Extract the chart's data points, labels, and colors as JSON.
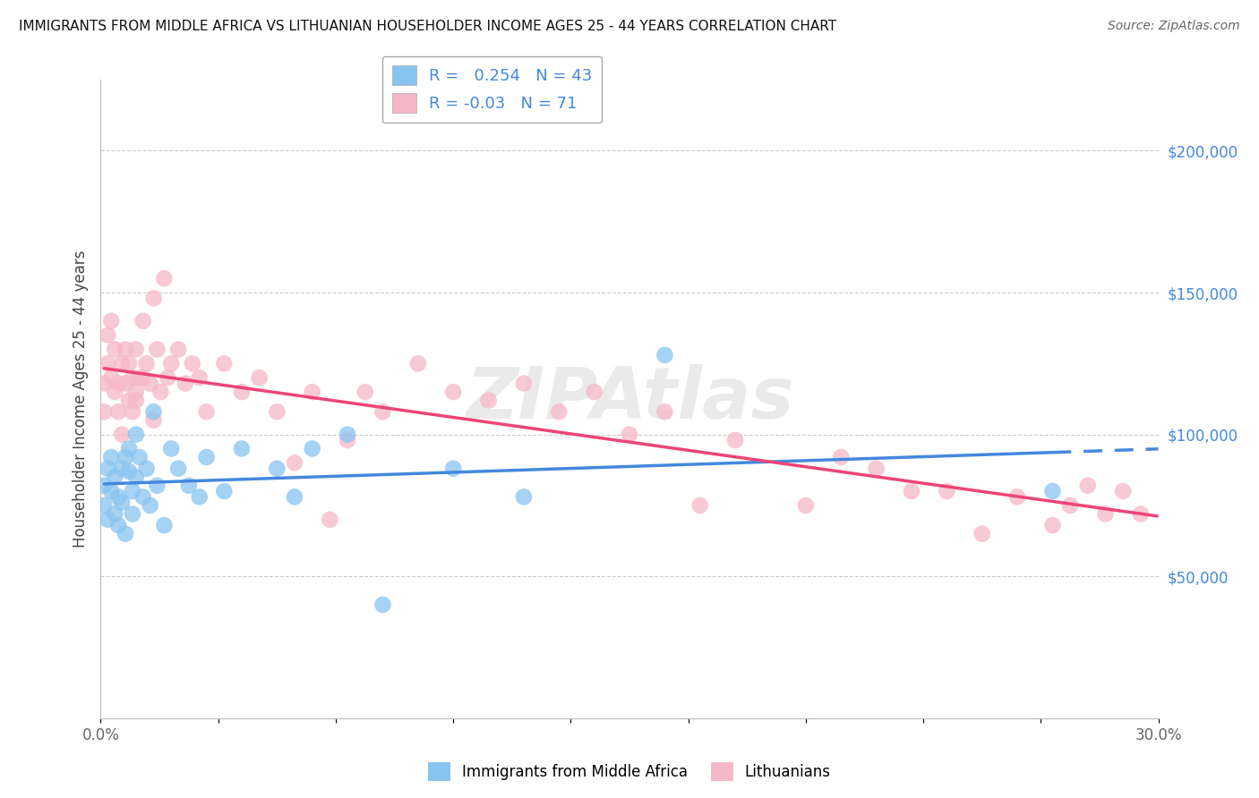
{
  "title": "IMMIGRANTS FROM MIDDLE AFRICA VS LITHUANIAN HOUSEHOLDER INCOME AGES 25 - 44 YEARS CORRELATION CHART",
  "source": "Source: ZipAtlas.com",
  "ylabel": "Householder Income Ages 25 - 44 years",
  "xlim": [
    0.0,
    0.3
  ],
  "ylim": [
    0,
    225000
  ],
  "xticks": [
    0.0,
    0.03333,
    0.06667,
    0.1,
    0.13333,
    0.16667,
    0.2,
    0.23333,
    0.26667,
    0.3
  ],
  "xticklabels": [
    "0.0%",
    "",
    "",
    "",
    "",
    "",
    "",
    "",
    "",
    "30.0%"
  ],
  "ytick_right_values": [
    50000,
    100000,
    150000,
    200000
  ],
  "R_blue": 0.254,
  "N_blue": 43,
  "R_pink": -0.03,
  "N_pink": 71,
  "blue_color": "#88c4f0",
  "pink_color": "#f5b8c8",
  "line_blue": "#4488dd",
  "line_pink": "#ee4477",
  "legend_label_blue": "Immigrants from Middle Africa",
  "legend_label_pink": "Lithuanians",
  "blue_x": [
    0.001,
    0.001,
    0.002,
    0.002,
    0.003,
    0.003,
    0.004,
    0.004,
    0.005,
    0.005,
    0.006,
    0.006,
    0.007,
    0.007,
    0.008,
    0.008,
    0.009,
    0.009,
    0.01,
    0.01,
    0.011,
    0.012,
    0.013,
    0.014,
    0.015,
    0.016,
    0.018,
    0.02,
    0.022,
    0.025,
    0.028,
    0.03,
    0.035,
    0.04,
    0.05,
    0.055,
    0.06,
    0.07,
    0.08,
    0.1,
    0.12,
    0.16,
    0.27
  ],
  "blue_y": [
    75000,
    82000,
    70000,
    88000,
    80000,
    92000,
    72000,
    85000,
    78000,
    68000,
    88000,
    76000,
    92000,
    65000,
    87000,
    95000,
    80000,
    72000,
    100000,
    85000,
    92000,
    78000,
    88000,
    75000,
    108000,
    82000,
    68000,
    95000,
    88000,
    82000,
    78000,
    92000,
    80000,
    95000,
    88000,
    78000,
    95000,
    100000,
    40000,
    88000,
    78000,
    128000,
    80000
  ],
  "pink_x": [
    0.001,
    0.001,
    0.002,
    0.002,
    0.003,
    0.003,
    0.004,
    0.004,
    0.005,
    0.005,
    0.006,
    0.006,
    0.007,
    0.007,
    0.008,
    0.008,
    0.009,
    0.009,
    0.01,
    0.01,
    0.011,
    0.012,
    0.013,
    0.014,
    0.015,
    0.016,
    0.017,
    0.018,
    0.019,
    0.02,
    0.022,
    0.024,
    0.026,
    0.028,
    0.03,
    0.035,
    0.04,
    0.045,
    0.05,
    0.055,
    0.06,
    0.065,
    0.07,
    0.075,
    0.08,
    0.09,
    0.1,
    0.11,
    0.12,
    0.13,
    0.14,
    0.15,
    0.16,
    0.17,
    0.18,
    0.2,
    0.21,
    0.22,
    0.23,
    0.24,
    0.25,
    0.26,
    0.27,
    0.275,
    0.28,
    0.285,
    0.29,
    0.295,
    0.01,
    0.012,
    0.015
  ],
  "pink_y": [
    108000,
    118000,
    125000,
    135000,
    120000,
    140000,
    115000,
    130000,
    108000,
    118000,
    125000,
    100000,
    130000,
    118000,
    112000,
    125000,
    108000,
    120000,
    130000,
    115000,
    120000,
    140000,
    125000,
    118000,
    148000,
    130000,
    115000,
    155000,
    120000,
    125000,
    130000,
    118000,
    125000,
    120000,
    108000,
    125000,
    115000,
    120000,
    108000,
    90000,
    115000,
    70000,
    98000,
    115000,
    108000,
    125000,
    115000,
    112000,
    118000,
    108000,
    115000,
    100000,
    108000,
    75000,
    98000,
    75000,
    92000,
    88000,
    80000,
    80000,
    65000,
    78000,
    68000,
    75000,
    82000,
    72000,
    80000,
    72000,
    112000,
    120000,
    105000
  ]
}
